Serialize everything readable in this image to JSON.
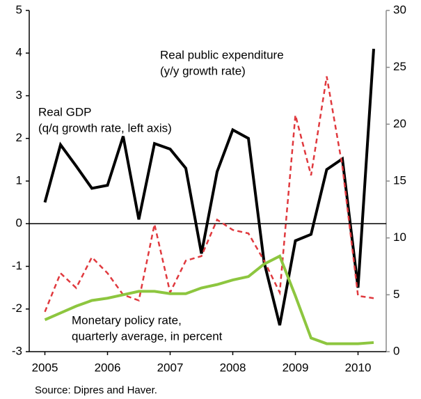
{
  "chart_data": {
    "type": "line",
    "x": [
      2005.0,
      2005.25,
      2005.5,
      2005.75,
      2006.0,
      2006.25,
      2006.5,
      2006.75,
      2007.0,
      2007.25,
      2007.5,
      2007.75,
      2008.0,
      2008.25,
      2008.5,
      2008.75,
      2009.0,
      2009.25,
      2009.5,
      2009.75,
      2010.0,
      2010.25
    ],
    "xlim": [
      2004.75,
      2010.45
    ],
    "xticks": [
      2005,
      2006,
      2007,
      2008,
      2009,
      2010
    ],
    "ylim": [
      -3,
      5
    ],
    "yticks": [
      -3,
      -2,
      -1,
      0,
      1,
      2,
      3,
      4,
      5
    ],
    "y2lim": [
      0,
      30
    ],
    "y2ticks": [
      0,
      5,
      10,
      15,
      20,
      25,
      30
    ],
    "series": [
      {
        "color": "#000000",
        "dash": false,
        "width": 4,
        "values": [
          0.5,
          1.85,
          1.35,
          0.83,
          0.9,
          2.05,
          0.1,
          1.88,
          1.75,
          1.3,
          -0.7,
          1.22,
          2.2,
          2.0,
          -0.9,
          -2.38,
          -0.4,
          -0.25,
          1.27,
          1.52,
          -1.5,
          4.1
        ]
      },
      {
        "color": "#e0393e",
        "dash": true,
        "width": 2.5,
        "axis": "y2",
        "values": [
          3.5,
          6.9,
          5.6,
          8.3,
          6.9,
          5.0,
          4.5,
          11.2,
          5.2,
          8.0,
          8.4,
          11.6,
          10.7,
          10.4,
          8.0,
          5.2,
          20.8,
          15.5,
          24.2,
          16.3,
          4.9,
          4.7
        ]
      },
      {
        "color": "#8dc63f",
        "dash": false,
        "width": 4,
        "axis": "y2",
        "values": [
          2.8,
          3.4,
          4.0,
          4.5,
          4.7,
          5.0,
          5.3,
          5.3,
          5.1,
          5.1,
          5.6,
          5.9,
          6.3,
          6.6,
          7.7,
          8.4,
          4.9,
          1.2,
          0.7,
          0.7,
          0.7,
          0.8
        ]
      }
    ],
    "annotations": [
      {
        "lines": [
          "Real public expenditure",
          "(y/y growth rate)"
        ]
      },
      {
        "lines": [
          "Real GDP",
          "(q/q growth rate, left axis)"
        ]
      },
      {
        "lines": [
          "Monetary policy rate,",
          "quarterly average, in percent"
        ]
      }
    ],
    "source": "Source: Dipres and Haver."
  }
}
